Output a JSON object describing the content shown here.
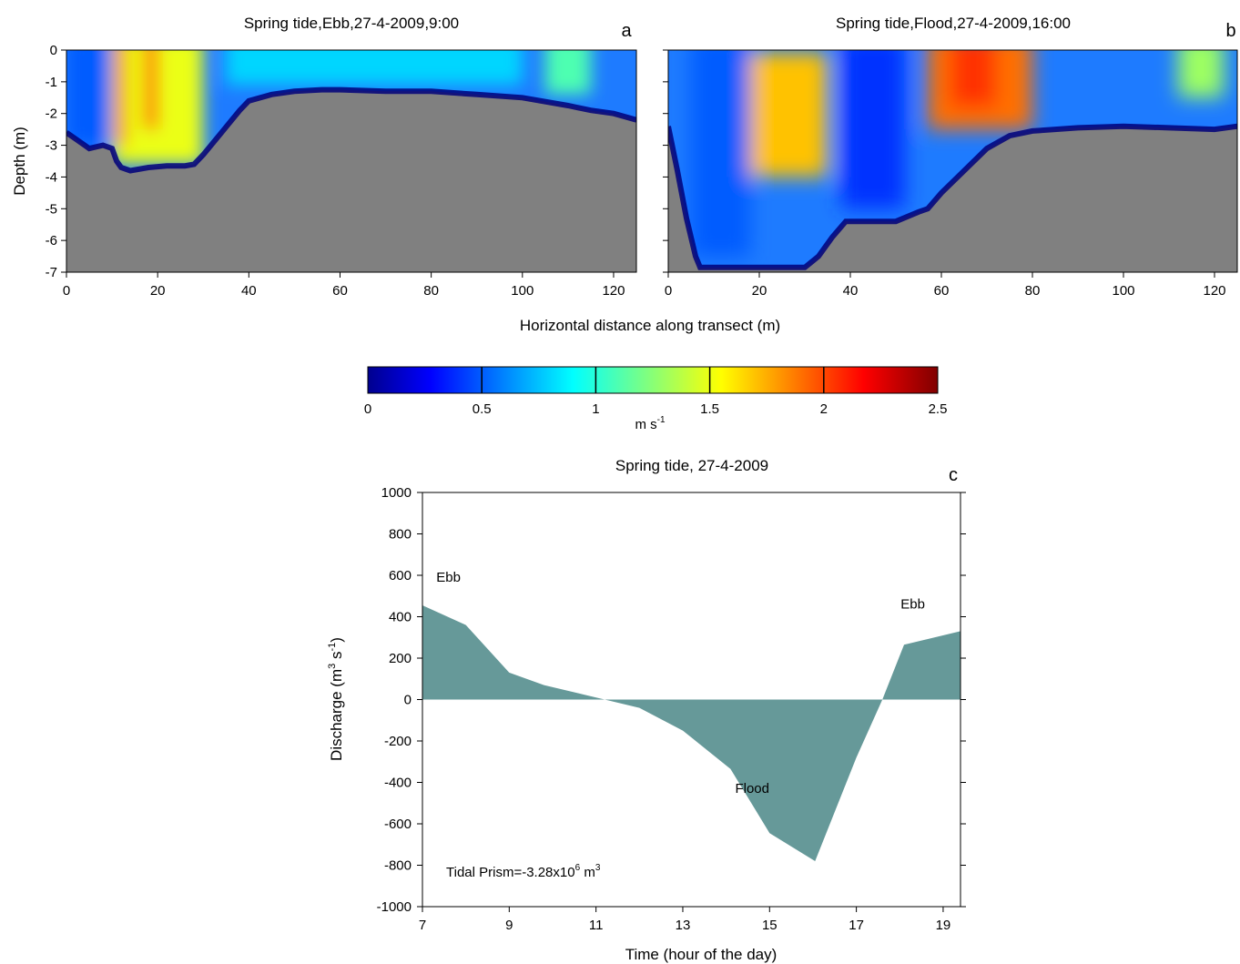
{
  "figure": {
    "xlabel_shared": "Horizontal distance along transect (m)",
    "colorbar": {
      "unit": "m s",
      "unit_sup": "-1",
      "ticks": [
        "0",
        "0.5",
        "1",
        "1.5",
        "2",
        "2.5"
      ],
      "range": [
        0,
        2.5
      ],
      "colormap": "jet"
    }
  },
  "chart_data": [
    {
      "type": "heatmap",
      "panel": "a",
      "title": "Spring tide,Ebb,27-4-2009,9:00",
      "ylabel": "Depth (m)",
      "xlim": [
        0,
        125
      ],
      "ylim": [
        -7,
        0
      ],
      "x_ticks": [
        "0",
        "20",
        "40",
        "60",
        "80",
        "100",
        "120"
      ],
      "y_ticks": [
        "0",
        "-1",
        "-2",
        "-3",
        "-4",
        "-5",
        "-6",
        "-7"
      ],
      "bed_profile": {
        "x": [
          0,
          2,
          4,
          5,
          8,
          10,
          11,
          12,
          14,
          18,
          22,
          26,
          28,
          30,
          34,
          38,
          40,
          45,
          50,
          56,
          60,
          70,
          80,
          90,
          100,
          110,
          115,
          120,
          125
        ],
        "depth": [
          -2.6,
          -2.8,
          -3.0,
          -3.1,
          -3.0,
          -3.1,
          -3.5,
          -3.7,
          -3.8,
          -3.7,
          -3.65,
          -3.65,
          -3.6,
          -3.3,
          -2.6,
          -1.9,
          -1.6,
          -1.4,
          -1.3,
          -1.25,
          -1.25,
          -1.3,
          -1.3,
          -1.4,
          -1.5,
          -1.75,
          -1.9,
          -2.0,
          -2.2
        ]
      },
      "velocity_regions": [
        {
          "x": [
            0,
            10
          ],
          "depth": [
            0,
            -3
          ],
          "value": 0.5
        },
        {
          "x": [
            10,
            30
          ],
          "depth": [
            0,
            -3.6
          ],
          "value": 1.5
        },
        {
          "x": [
            11,
            13
          ],
          "depth": [
            0,
            -3
          ],
          "value": 2.0
        },
        {
          "x": [
            17,
            20
          ],
          "depth": [
            0,
            -2.5
          ],
          "value": 1.9
        },
        {
          "x": [
            35,
            100
          ],
          "depth": [
            0,
            -1.1
          ],
          "value": 0.8
        },
        {
          "x": [
            105,
            115
          ],
          "depth": [
            0,
            -1.4
          ],
          "value": 1.1
        }
      ]
    },
    {
      "type": "heatmap",
      "panel": "b",
      "title": "Spring tide,Flood,27-4-2009,16:00",
      "xlim": [
        0,
        125
      ],
      "ylim": [
        -7,
        0
      ],
      "x_ticks": [
        "0",
        "20",
        "40",
        "60",
        "80",
        "100",
        "120"
      ],
      "bed_profile": {
        "x": [
          0,
          2,
          4,
          6,
          7,
          10,
          20,
          30,
          33,
          36,
          39,
          40,
          45,
          50,
          55,
          57,
          60,
          65,
          70,
          75,
          80,
          90,
          100,
          110,
          120,
          125
        ],
        "depth": [
          -2.4,
          -3.8,
          -5.3,
          -6.5,
          -6.85,
          -6.85,
          -6.85,
          -6.85,
          -6.5,
          -5.9,
          -5.4,
          -5.4,
          -5.4,
          -5.4,
          -5.1,
          -5.0,
          -4.5,
          -3.8,
          -3.1,
          -2.7,
          -2.55,
          -2.45,
          -2.4,
          -2.45,
          -2.5,
          -2.4
        ]
      },
      "velocity_regions": [
        {
          "x": [
            5,
            18
          ],
          "depth": [
            0,
            -6.5
          ],
          "value": 0.5
        },
        {
          "x": [
            18,
            35
          ],
          "depth": [
            -0.5,
            -4
          ],
          "value": 1.7
        },
        {
          "x": [
            38,
            52
          ],
          "depth": [
            0,
            -5
          ],
          "value": 0.4
        },
        {
          "x": [
            57,
            80
          ],
          "depth": [
            0,
            -2.5
          ],
          "value": 1.9
        },
        {
          "x": [
            62,
            72
          ],
          "depth": [
            0,
            -1.8
          ],
          "value": 2.05
        },
        {
          "x": [
            112,
            122
          ],
          "depth": [
            0,
            -1.5
          ],
          "value": 1.3
        }
      ]
    },
    {
      "type": "area",
      "panel": "c",
      "title": "Spring tide, 27-4-2009",
      "xlabel": "Time (hour of the day)",
      "ylabel": "Discharge (m",
      "ylabel_sup1": "3",
      "ylabel_mid": " s",
      "ylabel_sup2": "-1",
      "ylabel_end": ")",
      "xlim": [
        7,
        19.4
      ],
      "ylim": [
        -1000,
        1000
      ],
      "x_ticks": [
        "7",
        "9",
        "11",
        "13",
        "15",
        "17",
        "19"
      ],
      "y_ticks": [
        "1000",
        "800",
        "600",
        "400",
        "200",
        "0",
        "-200",
        "-400",
        "-600",
        "-800",
        "-1000"
      ],
      "x": [
        7,
        8,
        9,
        9.8,
        11.2,
        12,
        13,
        14.1,
        15,
        16.05,
        17,
        17.6,
        18.1,
        19.4
      ],
      "y": [
        455,
        360,
        130,
        70,
        0,
        -40,
        -150,
        -335,
        -645,
        -780,
        -280,
        0,
        265,
        330
      ],
      "color": "#669999",
      "annotations": [
        {
          "text": "Ebb",
          "x": 7.6,
          "y": 570
        },
        {
          "text": "Flood",
          "x": 14.6,
          "y": -450
        },
        {
          "text": "Ebb",
          "x": 18.3,
          "y": 440
        }
      ],
      "prism_text": "Tidal Prism=-3.28x10",
      "prism_sup": "6",
      "prism_unit": " m",
      "prism_unit_sup": "3"
    }
  ]
}
